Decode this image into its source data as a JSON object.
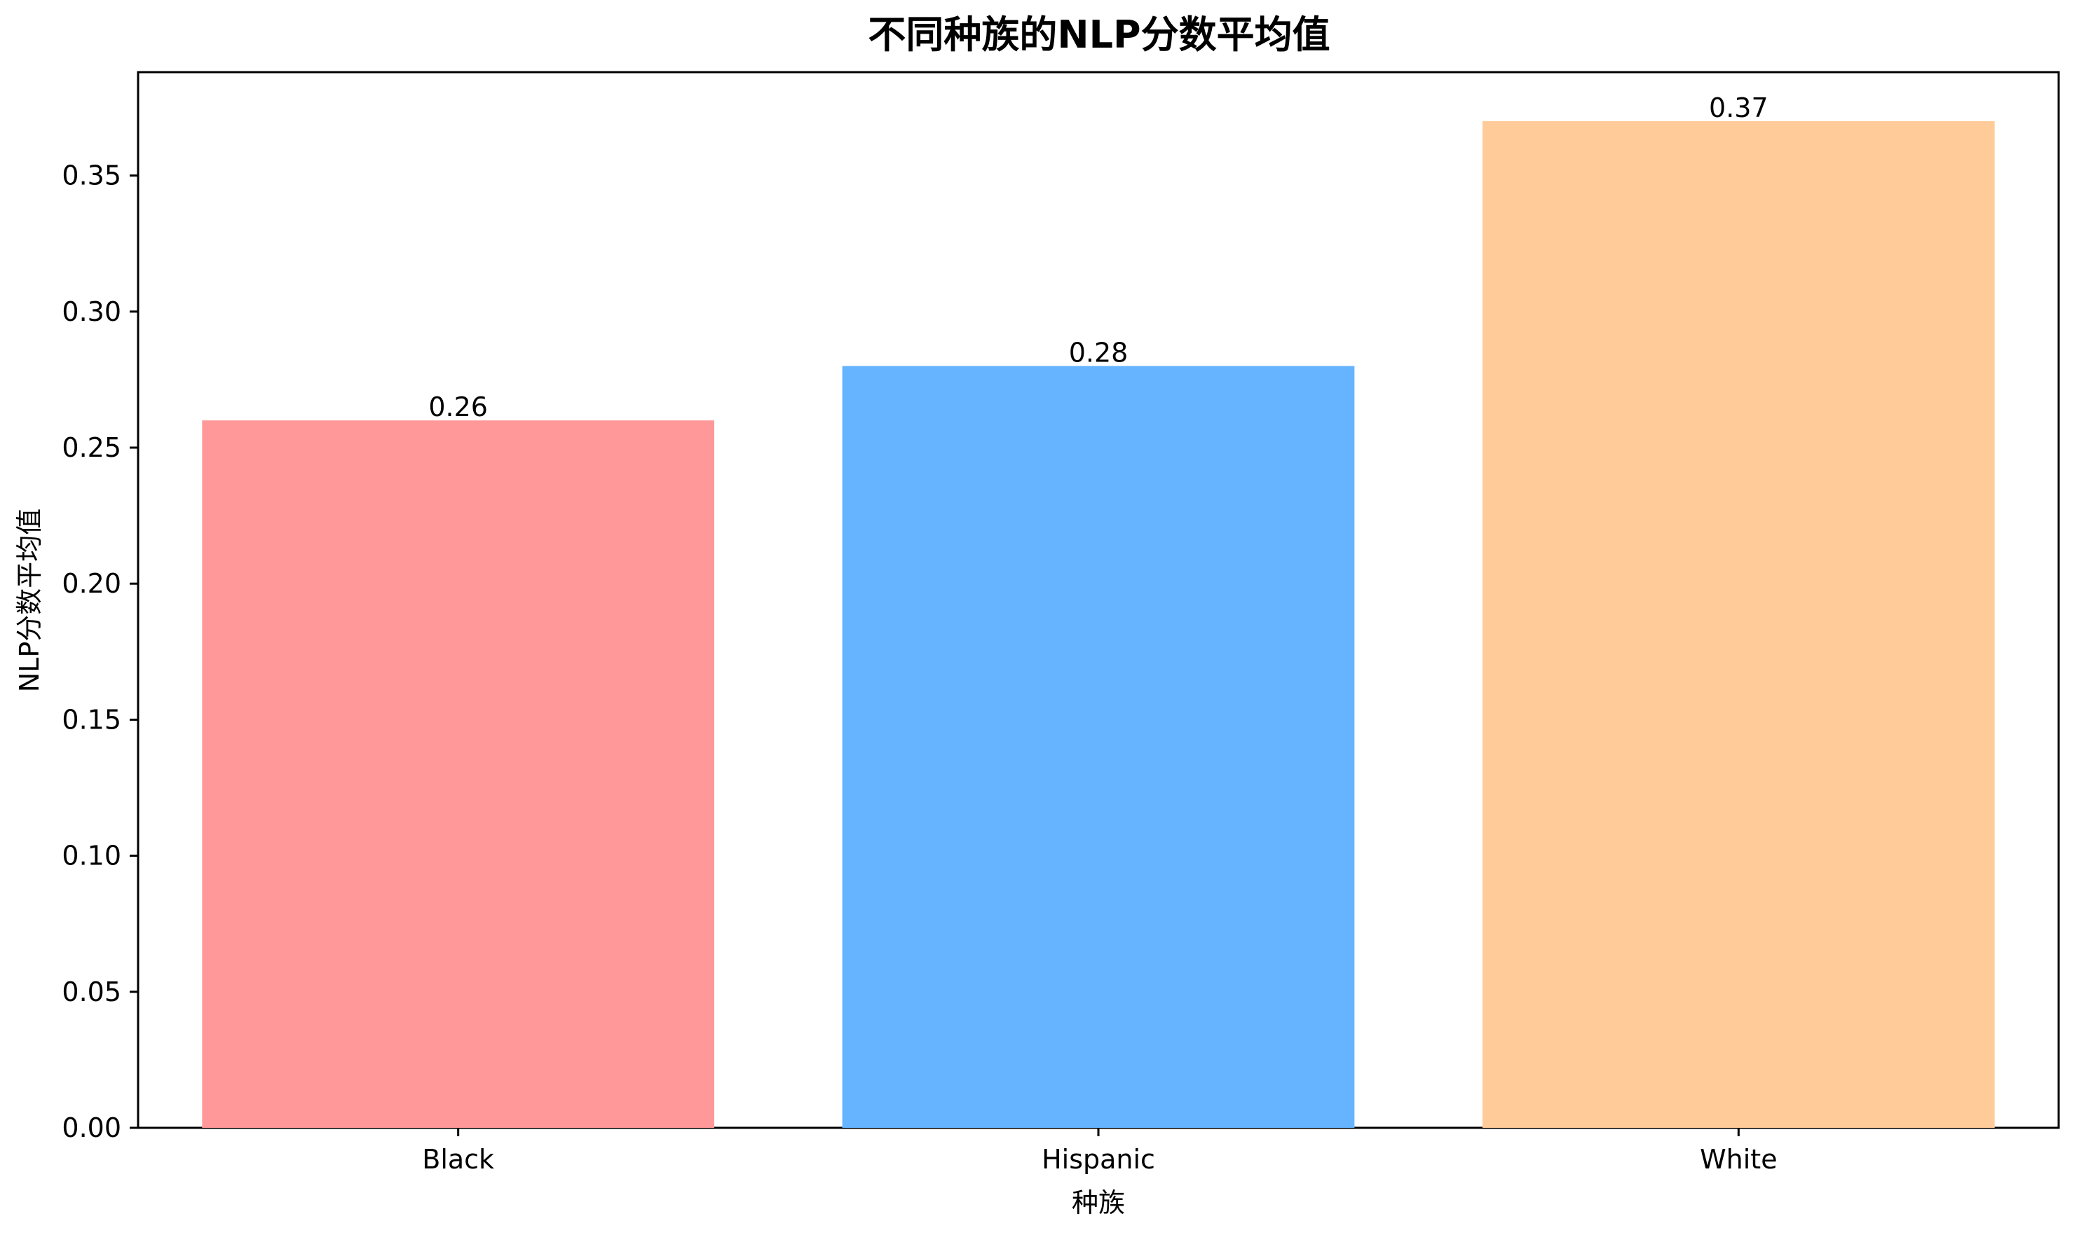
{
  "chart_data": {
    "type": "bar",
    "title": "不同种族的NLP分数平均值",
    "xlabel": "种族",
    "ylabel": "NLP分数平均值",
    "categories": [
      "Black",
      "Hispanic",
      "White"
    ],
    "values": [
      0.26,
      0.28,
      0.37
    ],
    "value_labels": [
      "0.26",
      "0.28",
      "0.37"
    ],
    "bar_colors": [
      "#ff9999",
      "#66b3ff",
      "#ffcc99"
    ],
    "ylim": [
      0,
      0.388
    ],
    "yticks": [
      0.0,
      0.05,
      0.1,
      0.15,
      0.2,
      0.25,
      0.3,
      0.35
    ],
    "ytick_labels": [
      "0.00",
      "0.05",
      "0.10",
      "0.15",
      "0.20",
      "0.25",
      "0.30",
      "0.35"
    ],
    "grid": false,
    "legend": "none"
  }
}
